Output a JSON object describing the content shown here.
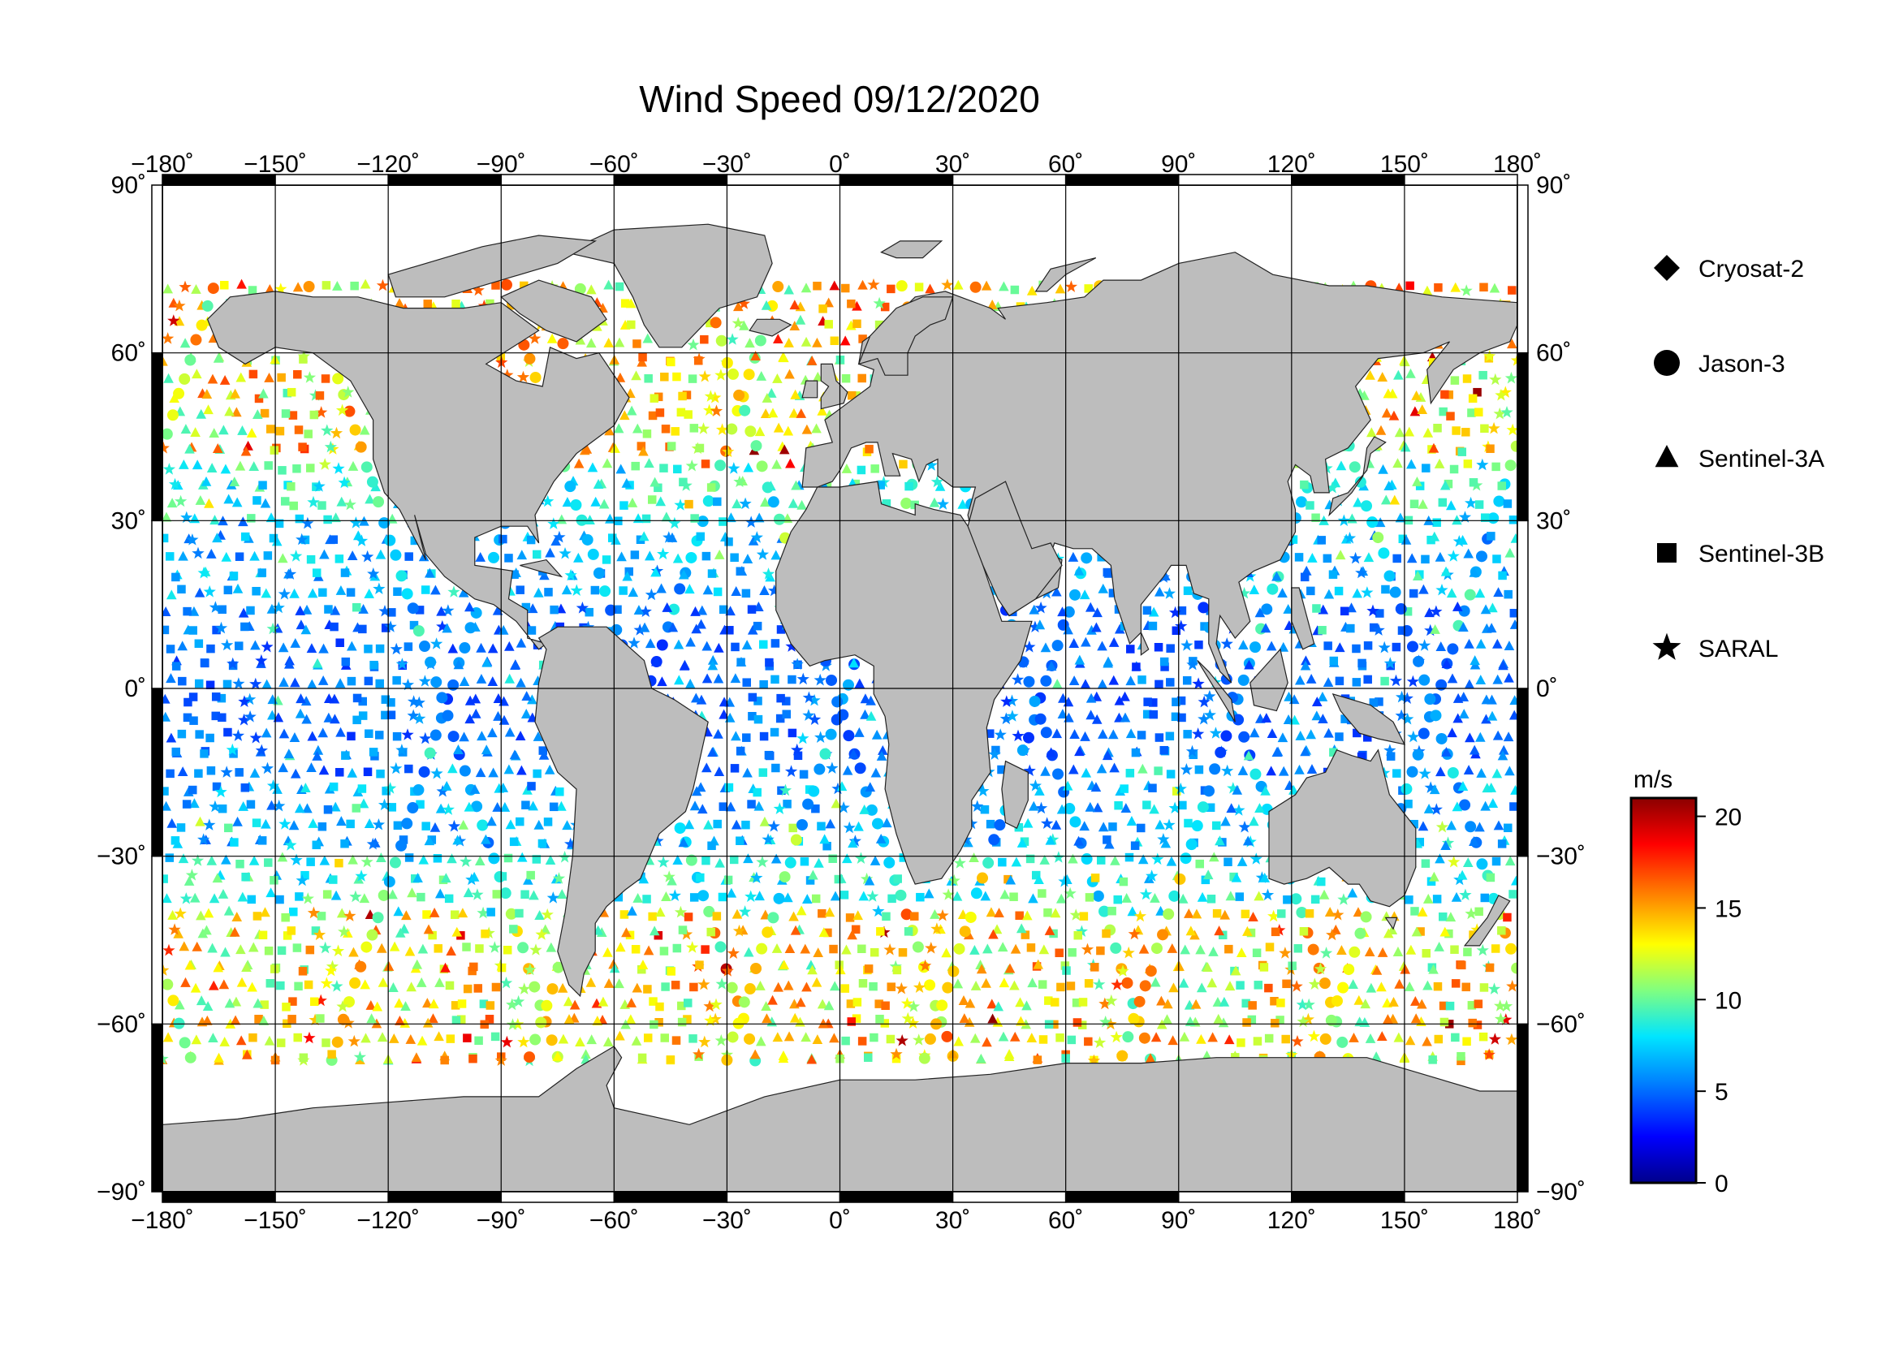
{
  "title": "Wind Speed 09/12/2020",
  "map": {
    "lon_range": [
      -180,
      180
    ],
    "lat_range": [
      -90,
      90
    ],
    "lon_ticks": [
      -180,
      -150,
      -120,
      -90,
      -60,
      -30,
      0,
      30,
      60,
      90,
      120,
      150,
      180
    ],
    "lat_ticks": [
      -90,
      -60,
      -30,
      0,
      30,
      60,
      90
    ],
    "lon_tick_labels": [
      "−180˚",
      "−150˚",
      "−120˚",
      "−90˚",
      "−60˚",
      "−30˚",
      "0˚",
      "30˚",
      "60˚",
      "90˚",
      "120˚",
      "150˚",
      "180˚"
    ],
    "lat_tick_labels": [
      "−90˚",
      "−60˚",
      "−30˚",
      "0˚",
      "30˚",
      "60˚",
      "90˚"
    ],
    "grid": true,
    "land_color": "#bdbdbd",
    "ocean_color": "#ffffff"
  },
  "legend": {
    "placement": "right",
    "items": [
      {
        "label": "Cryosat-2",
        "symbol": "diamond"
      },
      {
        "label": "Jason-3",
        "symbol": "circle"
      },
      {
        "label": "Sentinel-3A",
        "symbol": "triangle"
      },
      {
        "label": "Sentinel-3B",
        "symbol": "square"
      },
      {
        "label": "SARAL",
        "symbol": "star"
      }
    ]
  },
  "colorbar": {
    "unit": "m/s",
    "range": [
      0,
      21
    ],
    "ticks": [
      0,
      5,
      10,
      15,
      20
    ],
    "colors": [
      "#00008b",
      "#0000ff",
      "#0080ff",
      "#00e5ff",
      "#80ff80",
      "#ffff00",
      "#ff8000",
      "#ff0000",
      "#8b0000"
    ]
  }
}
